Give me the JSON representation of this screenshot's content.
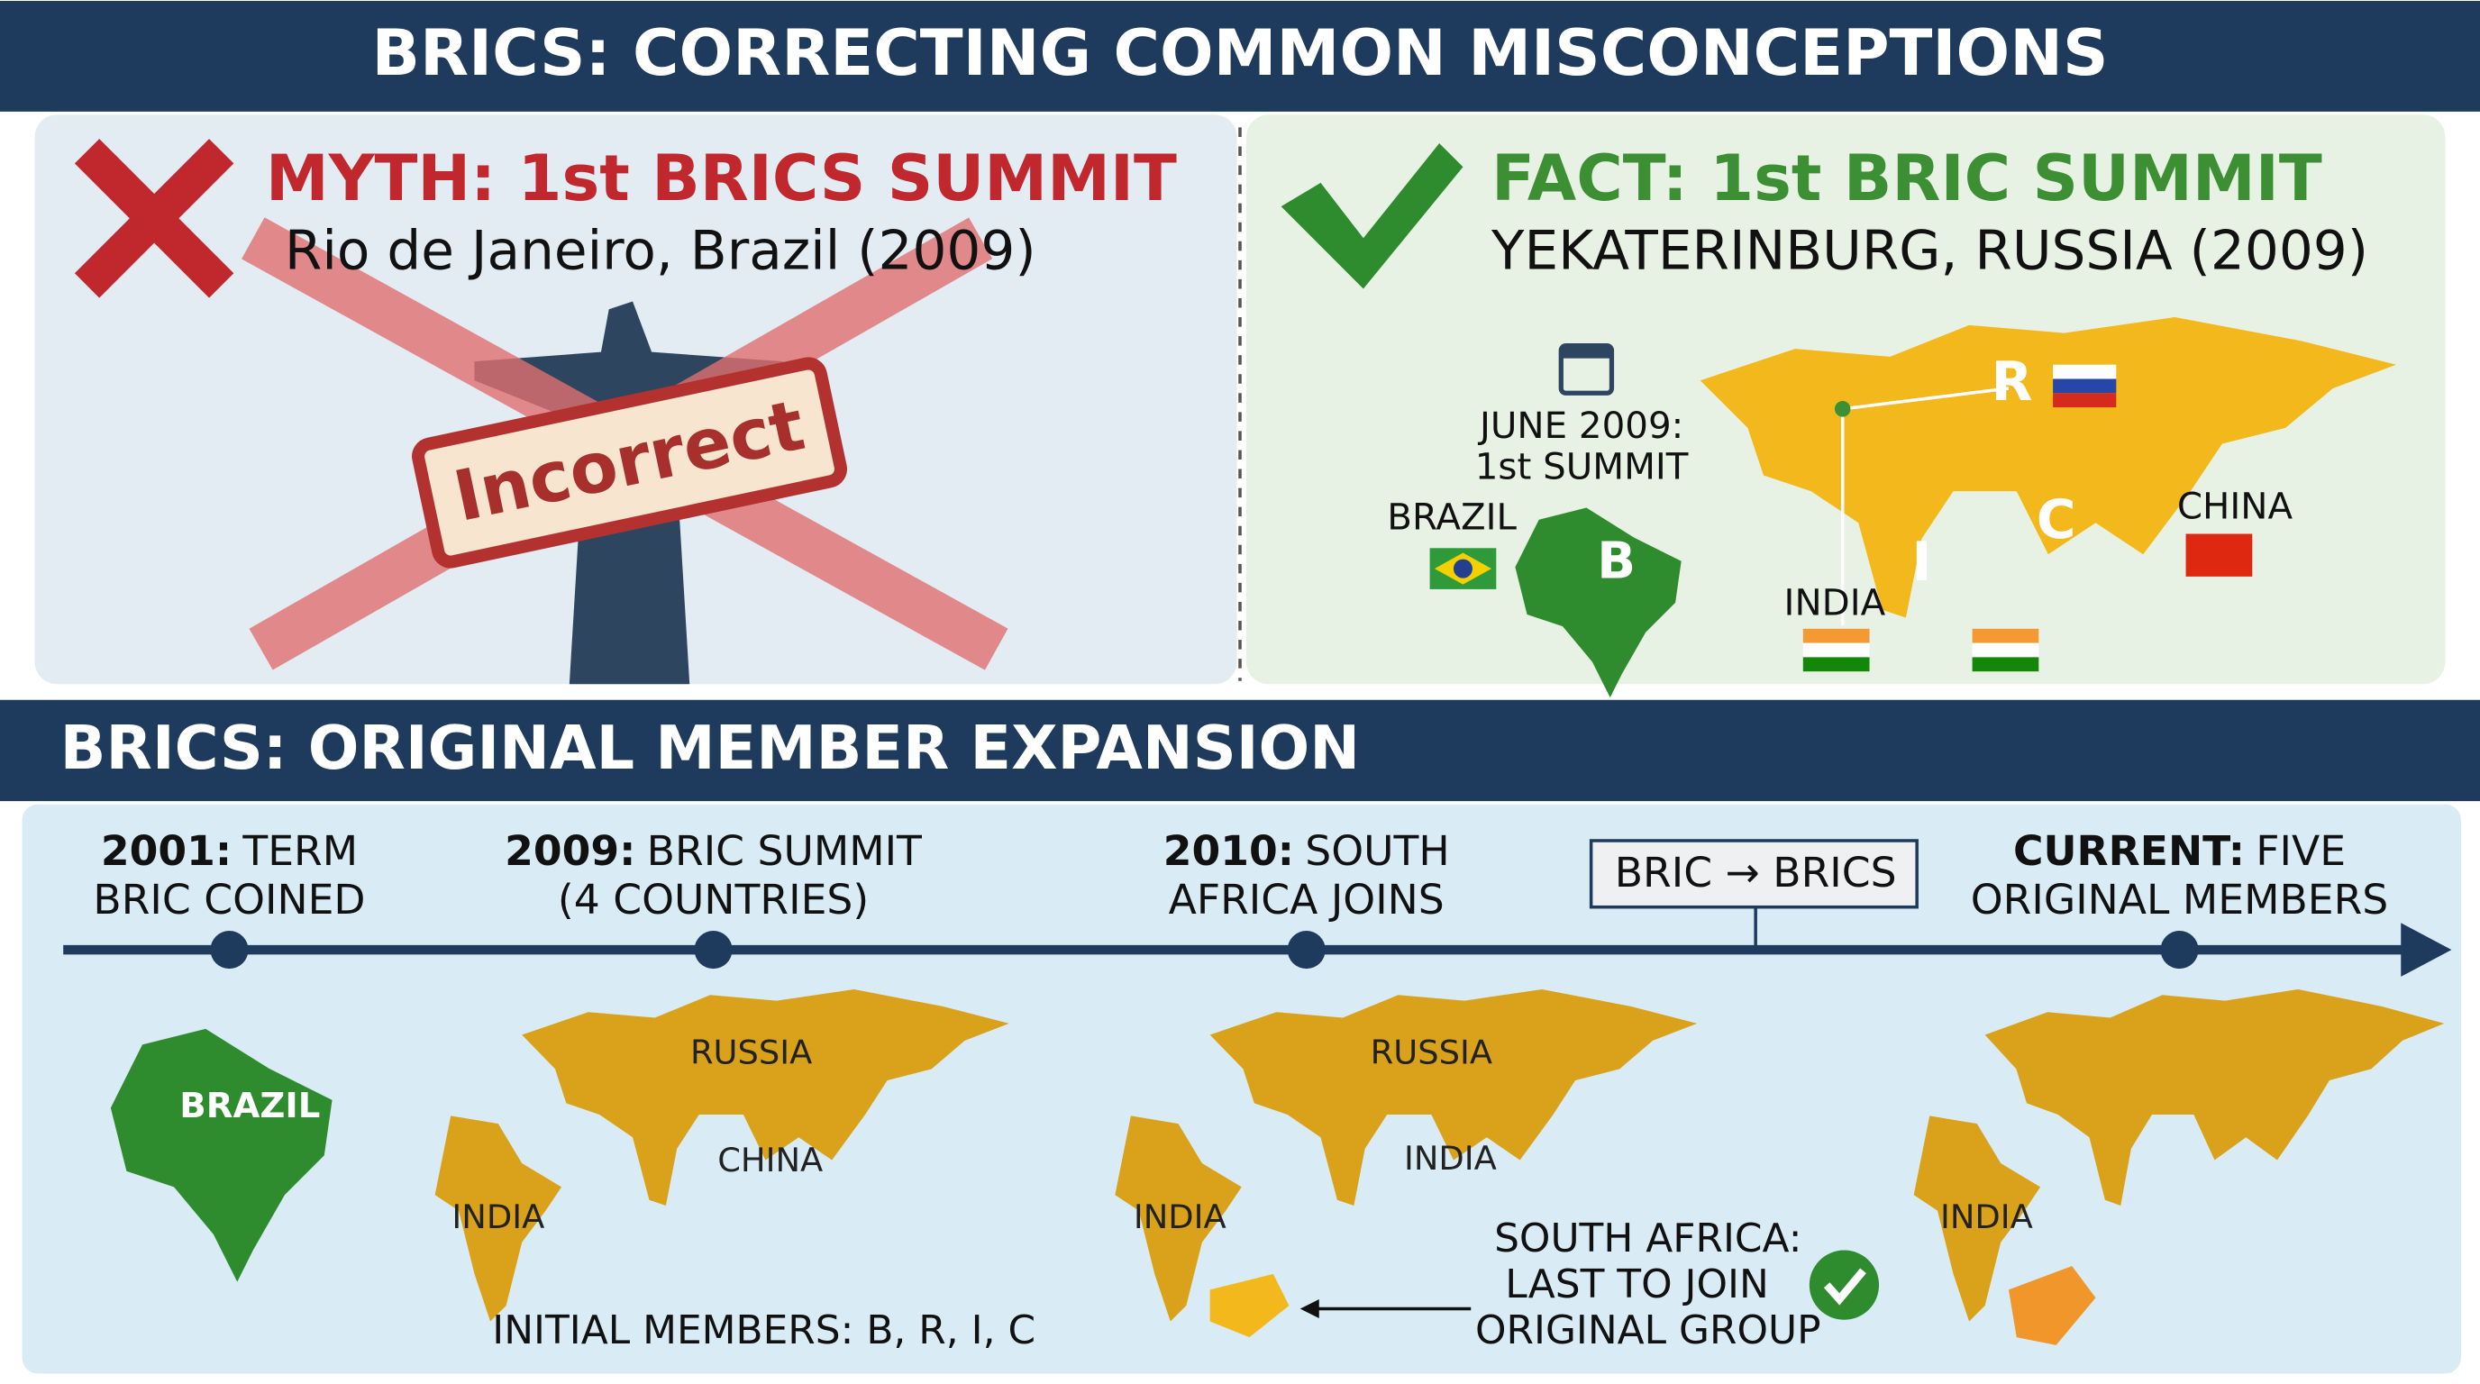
{
  "header": {
    "title": "BRICS: CORRECTING COMMON MISCONCEPTIONS"
  },
  "myth": {
    "heading": "MYTH: 1st BRICS SUMMIT",
    "detail": "Rio de Janeiro, Brazil (2009)",
    "stamp": "Incorrect"
  },
  "fact": {
    "heading": "FACT: 1st BRIC SUMMIT",
    "detail": "YEKATERINBURG, RUSSIA (2009)",
    "date_note": [
      "JUNE 2009:",
      "1st SUMMIT"
    ],
    "country_labels": [
      "BRAZIL",
      "INDIA",
      "CHINA"
    ],
    "letters": [
      "B",
      "R",
      "I",
      "C"
    ]
  },
  "timeline": {
    "title": "BRICS: ORIGINAL MEMBER EXPANSION",
    "events": [
      {
        "label": "2001:",
        "lines": [
          "TERM",
          "BRIC COINED"
        ]
      },
      {
        "label": "2009:",
        "lines": [
          "BRIC SUMMIT",
          "(4 COUNTRIES)"
        ]
      },
      {
        "label": "2010:",
        "lines": [
          "SOUTH",
          "AFRICA JOINS"
        ]
      },
      {
        "label": "CURRENT:",
        "lines": [
          "FIVE",
          "ORIGINAL MEMBERS"
        ]
      }
    ],
    "callout": "BRIC → BRICS",
    "maps": [
      [
        "BRAZIL"
      ],
      [
        "RUSSIA",
        "CHINA",
        "INDIA"
      ],
      [
        "RUSSIA",
        "INDIA",
        "INDIA"
      ],
      [
        "INDIA"
      ]
    ],
    "initial_note": "INITIAL MEMBERS: B, R, I, C",
    "south_africa_note": [
      "SOUTH AFRICA:",
      "LAST TO JOIN",
      "ORIGINAL GROUP"
    ]
  }
}
